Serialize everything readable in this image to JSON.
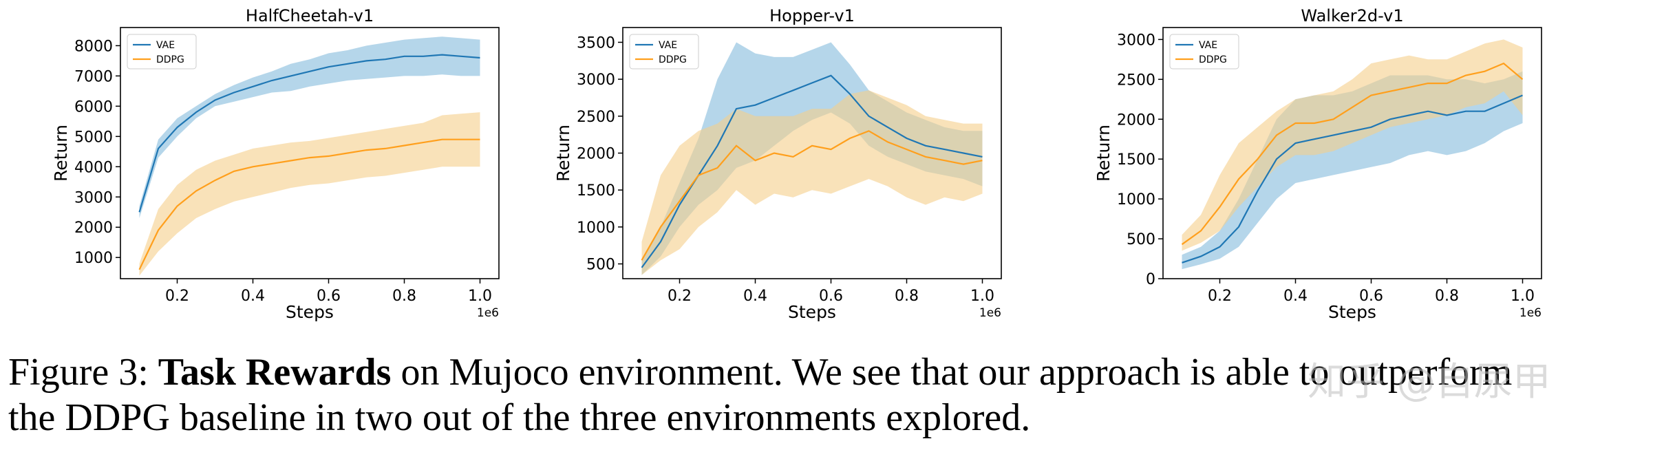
{
  "figure": {
    "caption_label": "Figure 3:",
    "caption_bold": "Task Rewards",
    "caption_line1_rest": "on Mujoco environment. We see that our approach is able to outperform",
    "caption_line2": "the DDPG baseline in two out of the three environments explored.",
    "watermark": "知乎 @自尿甲"
  },
  "colors": {
    "vae": "#1f77b4",
    "vae_fill": "#6baed6",
    "ddpg": "#ff9f1c",
    "ddpg_fill": "#f5cf8a"
  },
  "chart_data": [
    {
      "type": "line",
      "title": "HalfCheetah-v1",
      "xlabel": "Steps",
      "ylabel": "Return",
      "x_scale_label": "1e6",
      "xlim": [
        0.05,
        1.05
      ],
      "ylim": [
        300,
        8600
      ],
      "xticks": [
        0.2,
        0.4,
        0.6,
        0.8,
        1.0
      ],
      "xtick_labels": [
        "0.2",
        "0.4",
        "0.6",
        "0.8",
        "1.0"
      ],
      "yticks": [
        1000,
        2000,
        3000,
        4000,
        5000,
        6000,
        7000,
        8000
      ],
      "ytick_labels": [
        "1000",
        "2000",
        "3000",
        "4000",
        "5000",
        "6000",
        "7000",
        "8000"
      ],
      "legend": "top-left",
      "x": [
        0.1,
        0.15,
        0.2,
        0.25,
        0.3,
        0.35,
        0.4,
        0.45,
        0.5,
        0.55,
        0.6,
        0.65,
        0.7,
        0.75,
        0.8,
        0.85,
        0.9,
        0.95,
        1.0
      ],
      "series": [
        {
          "name": "VAE",
          "values": [
            2500,
            4600,
            5300,
            5800,
            6200,
            6450,
            6650,
            6850,
            7000,
            7150,
            7300,
            7400,
            7500,
            7550,
            7650,
            7650,
            7700,
            7650,
            7600
          ],
          "lower": [
            2300,
            4300,
            5000,
            5600,
            6000,
            6150,
            6300,
            6450,
            6500,
            6650,
            6750,
            6850,
            6900,
            6950,
            7000,
            7000,
            7050,
            7000,
            7000
          ],
          "upper": [
            2700,
            4900,
            5600,
            6000,
            6400,
            6700,
            6950,
            7150,
            7400,
            7550,
            7750,
            7850,
            8000,
            8100,
            8200,
            8250,
            8300,
            8250,
            8200
          ]
        },
        {
          "name": "DDPG",
          "values": [
            600,
            1900,
            2700,
            3200,
            3550,
            3850,
            4000,
            4100,
            4200,
            4300,
            4350,
            4450,
            4550,
            4600,
            4700,
            4800,
            4900,
            4900,
            4900
          ],
          "lower": [
            400,
            1200,
            1800,
            2300,
            2600,
            2850,
            3000,
            3150,
            3300,
            3400,
            3450,
            3550,
            3650,
            3700,
            3800,
            3900,
            4000,
            4000,
            4000
          ],
          "upper": [
            800,
            2600,
            3400,
            3900,
            4200,
            4400,
            4600,
            4700,
            4800,
            4850,
            4950,
            5050,
            5150,
            5250,
            5350,
            5450,
            5700,
            5750,
            5800
          ]
        }
      ]
    },
    {
      "type": "line",
      "title": "Hopper-v1",
      "xlabel": "Steps",
      "ylabel": "Return",
      "x_scale_label": "1e6",
      "xlim": [
        0.05,
        1.05
      ],
      "ylim": [
        300,
        3700
      ],
      "xticks": [
        0.2,
        0.4,
        0.6,
        0.8,
        1.0
      ],
      "xtick_labels": [
        "0.2",
        "0.4",
        "0.6",
        "0.8",
        "1.0"
      ],
      "yticks": [
        500,
        1000,
        1500,
        2000,
        2500,
        3000,
        3500
      ],
      "ytick_labels": [
        "500",
        "1000",
        "1500",
        "2000",
        "2500",
        "3000",
        "3500"
      ],
      "legend": "top-left",
      "x": [
        0.1,
        0.15,
        0.2,
        0.25,
        0.3,
        0.35,
        0.4,
        0.45,
        0.5,
        0.55,
        0.6,
        0.65,
        0.7,
        0.75,
        0.8,
        0.85,
        0.9,
        0.95,
        1.0
      ],
      "series": [
        {
          "name": "VAE",
          "values": [
            450,
            800,
            1300,
            1700,
            2100,
            2600,
            2650,
            2750,
            2850,
            2950,
            3050,
            2800,
            2500,
            2350,
            2200,
            2100,
            2050,
            2000,
            1950
          ],
          "lower": [
            350,
            600,
            1000,
            1300,
            1500,
            1800,
            1900,
            2100,
            2300,
            2450,
            2550,
            2400,
            2100,
            1950,
            1850,
            1750,
            1700,
            1650,
            1550
          ],
          "upper": [
            550,
            1000,
            1600,
            2200,
            3000,
            3500,
            3350,
            3300,
            3300,
            3400,
            3500,
            3200,
            2850,
            2700,
            2550,
            2450,
            2350,
            2300,
            2300
          ]
        },
        {
          "name": "DDPG",
          "values": [
            550,
            1000,
            1350,
            1700,
            1800,
            2100,
            1900,
            2000,
            1950,
            2100,
            2050,
            2200,
            2300,
            2150,
            2050,
            1950,
            1900,
            1850,
            1900
          ],
          "lower": [
            350,
            550,
            700,
            1000,
            1200,
            1500,
            1300,
            1450,
            1400,
            1500,
            1450,
            1550,
            1650,
            1550,
            1400,
            1300,
            1400,
            1350,
            1450
          ],
          "upper": [
            800,
            1700,
            2100,
            2300,
            2400,
            2600,
            2500,
            2500,
            2500,
            2600,
            2600,
            2800,
            2850,
            2750,
            2650,
            2500,
            2450,
            2400,
            2400
          ]
        }
      ]
    },
    {
      "type": "line",
      "title": "Walker2d-v1",
      "xlabel": "Steps",
      "ylabel": "Return",
      "x_scale_label": "1e6",
      "xlim": [
        0.05,
        1.05
      ],
      "ylim": [
        0,
        3150
      ],
      "xticks": [
        0.2,
        0.4,
        0.6,
        0.8,
        1.0
      ],
      "xtick_labels": [
        "0.2",
        "0.4",
        "0.6",
        "0.8",
        "1.0"
      ],
      "yticks": [
        0,
        500,
        1000,
        1500,
        2000,
        2500,
        3000
      ],
      "ytick_labels": [
        "0",
        "500",
        "1000",
        "1500",
        "2000",
        "2500",
        "3000"
      ],
      "legend": "top-left",
      "x": [
        0.1,
        0.15,
        0.2,
        0.25,
        0.3,
        0.35,
        0.4,
        0.45,
        0.5,
        0.55,
        0.6,
        0.65,
        0.7,
        0.75,
        0.8,
        0.85,
        0.9,
        0.95,
        1.0
      ],
      "series": [
        {
          "name": "VAE",
          "values": [
            200,
            280,
            400,
            650,
            1100,
            1500,
            1700,
            1750,
            1800,
            1850,
            1900,
            2000,
            2050,
            2100,
            2050,
            2100,
            2100,
            2200,
            2300
          ],
          "lower": [
            120,
            180,
            250,
            400,
            700,
            1000,
            1200,
            1250,
            1300,
            1350,
            1400,
            1450,
            1550,
            1600,
            1550,
            1600,
            1700,
            1850,
            1950
          ],
          "upper": [
            300,
            400,
            600,
            1000,
            1500,
            2000,
            2250,
            2300,
            2300,
            2350,
            2450,
            2550,
            2550,
            2550,
            2500,
            2500,
            2450,
            2500,
            2600
          ]
        },
        {
          "name": "DDPG",
          "values": [
            430,
            600,
            900,
            1250,
            1500,
            1800,
            1950,
            1950,
            2000,
            2150,
            2300,
            2350,
            2400,
            2450,
            2450,
            2550,
            2600,
            2700,
            2500
          ],
          "lower": [
            350,
            450,
            600,
            900,
            1150,
            1400,
            1550,
            1550,
            1600,
            1700,
            1800,
            1900,
            1950,
            2000,
            2050,
            2150,
            2200,
            2350,
            2050
          ],
          "upper": [
            550,
            800,
            1300,
            1700,
            1900,
            2100,
            2250,
            2300,
            2350,
            2500,
            2700,
            2750,
            2800,
            2750,
            2750,
            2850,
            2950,
            3000,
            2900
          ]
        }
      ]
    }
  ]
}
